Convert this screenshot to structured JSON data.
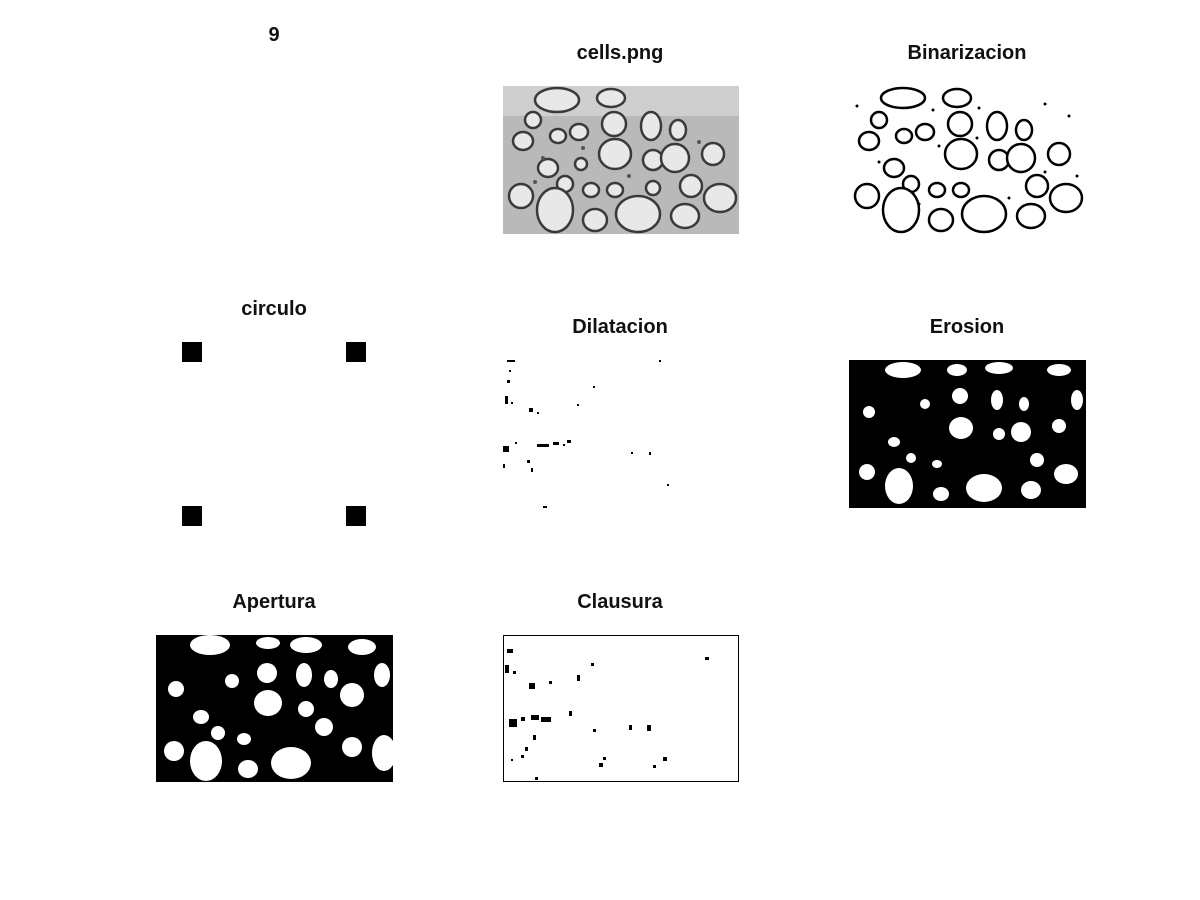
{
  "figure": {
    "corner_number": "9",
    "panels": [
      {
        "id": "cells",
        "title": "cells.png"
      },
      {
        "id": "binarizacion",
        "title": "Binarizacion"
      },
      {
        "id": "circulo",
        "title": "circulo"
      },
      {
        "id": "dilatacion",
        "title": "Dilatacion"
      },
      {
        "id": "erosion",
        "title": "Erosion"
      },
      {
        "id": "apertura",
        "title": "Apertura"
      },
      {
        "id": "clausura",
        "title": "Clausura"
      }
    ]
  }
}
